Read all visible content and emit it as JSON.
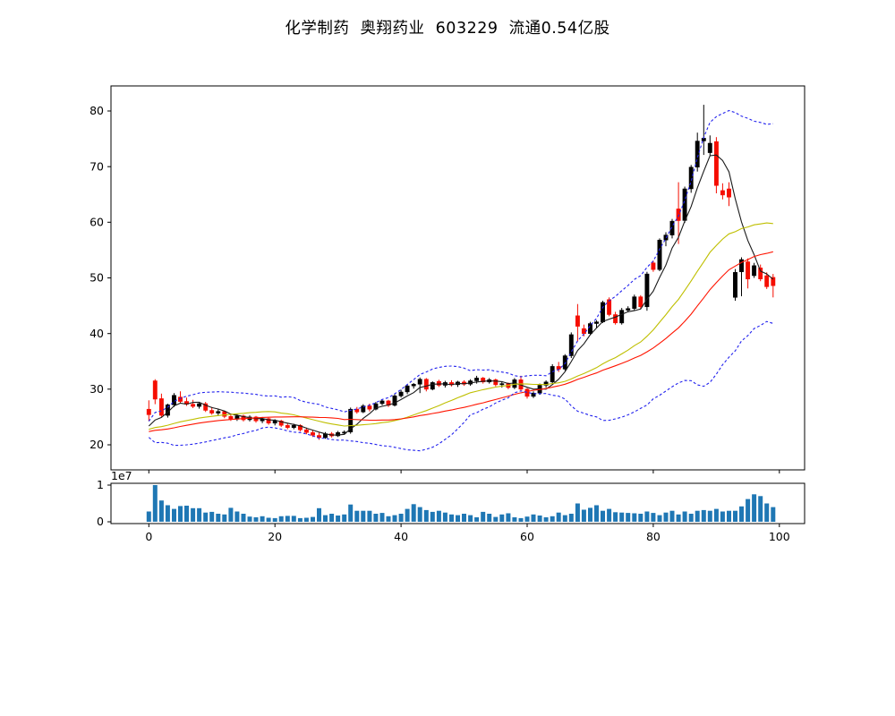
{
  "title": "化学制药  奥翔药业  603229  流通0.54亿股",
  "figure": {
    "background": "#ffffff",
    "axes_edge_color": "#000000",
    "tick_label_color": "#000000"
  },
  "chart_data": {
    "type": "candlestick",
    "title": "化学制药  奥翔药业  603229  流通0.54亿股",
    "x_start": 0,
    "x_step": 1,
    "n_points": 100,
    "xlim": [
      -6,
      104
    ],
    "ylim": [
      15.5,
      84.5
    ],
    "y_ticks": [
      20,
      30,
      40,
      50,
      60,
      70,
      80
    ],
    "x_ticks": [
      0,
      20,
      40,
      60,
      80,
      100
    ],
    "grid": false,
    "legend": "none",
    "up_color": "#000000",
    "down_color": "#f50d00",
    "overlays": [
      {
        "name": "ma5",
        "color": "#1a1a1a",
        "style": "solid",
        "window": 5
      },
      {
        "name": "ma20",
        "color": "#bfbf00",
        "style": "solid",
        "window": 20
      },
      {
        "name": "ma30",
        "color": "#ff1400",
        "style": "solid",
        "window": 30
      },
      {
        "name": "bollinger-upper",
        "color": "#2222ee",
        "style": "dashed",
        "window": 20,
        "k": 2
      },
      {
        "name": "bollinger-lower",
        "color": "#2222ee",
        "style": "dashed",
        "window": 20,
        "k": -2
      }
    ],
    "pre_window_closes": [
      20.6,
      21.0,
      20.7,
      21.3,
      21.6,
      21.2,
      21.8,
      22.1,
      21.9,
      22.4,
      22.2,
      22.6,
      22.9,
      22.5,
      23.0,
      22.7,
      23.2,
      22.8,
      23.1,
      22.6,
      23.0,
      22.8,
      23.0,
      22.5,
      23.2
    ],
    "open": [
      26.4,
      31.5,
      28.3,
      25.3,
      27.2,
      28.6,
      27.8,
      27.3,
      26.9,
      27.4,
      26.2,
      25.7,
      26.0,
      25.1,
      24.6,
      25.2,
      24.5,
      25.0,
      24.3,
      24.7,
      23.9,
      24.3,
      23.5,
      23.1,
      23.5,
      22.7,
      22.2,
      21.7,
      21.3,
      22.0,
      21.6,
      22.2,
      22.3,
      26.4,
      25.9,
      27.0,
      26.4,
      27.4,
      27.9,
      27.1,
      28.8,
      29.5,
      30.6,
      30.9,
      31.8,
      30.0,
      31.4,
      30.7,
      31.2,
      30.8,
      31.3,
      30.9,
      31.5,
      32.0,
      31.3,
      31.7,
      30.8,
      31.0,
      30.3,
      31.7,
      30.0,
      28.7,
      29.3,
      30.7,
      31.3,
      34.1,
      33.6,
      36.0,
      43.2,
      40.9,
      40.0,
      41.8,
      42.1,
      46.1,
      43.4,
      41.9,
      44.2,
      44.5,
      46.6,
      44.8,
      52.7,
      51.5,
      56.8,
      57.7,
      62.4,
      60.3,
      66.0,
      69.9,
      74.6,
      72.5,
      74.5,
      65.7,
      66.0,
      46.5,
      51.1,
      52.9,
      50.4,
      51.8,
      50.4,
      50.1
    ],
    "high": [
      28.0,
      31.8,
      29.2,
      27.4,
      29.3,
      29.6,
      28.5,
      28.1,
      27.7,
      27.7,
      26.8,
      26.4,
      26.2,
      25.6,
      25.5,
      25.4,
      25.3,
      25.2,
      25.0,
      24.9,
      24.6,
      24.5,
      23.9,
      23.8,
      23.7,
      23.1,
      22.6,
      22.2,
      22.3,
      22.3,
      22.5,
      22.6,
      26.7,
      26.8,
      27.3,
      27.4,
      27.7,
      28.2,
      28.1,
      29.1,
      29.9,
      30.9,
      31.1,
      32.1,
      32.0,
      31.4,
      31.7,
      31.5,
      31.6,
      31.5,
      31.6,
      31.8,
      32.4,
      32.2,
      32.0,
      31.9,
      31.3,
      31.2,
      32.0,
      32.4,
      30.2,
      29.6,
      31.0,
      31.6,
      34.5,
      34.9,
      36.3,
      40.2,
      45.3,
      41.6,
      42.1,
      42.4,
      45.9,
      46.5,
      43.9,
      44.6,
      44.9,
      47.0,
      46.9,
      51.1,
      53.1,
      57.1,
      58.2,
      60.6,
      67.2,
      66.4,
      70.3,
      76.1,
      81.1,
      75.6,
      75.3,
      67.0,
      67.2,
      51.6,
      53.7,
      53.5,
      52.7,
      52.4,
      51.0,
      50.7
    ],
    "low": [
      24.3,
      27.3,
      24.9,
      24.9,
      26.8,
      27.4,
      27.0,
      26.6,
      26.5,
      25.9,
      25.4,
      25.2,
      24.8,
      24.3,
      24.3,
      24.2,
      24.2,
      24.0,
      23.9,
      23.6,
      23.5,
      23.2,
      22.8,
      22.8,
      22.4,
      21.9,
      21.4,
      20.9,
      21.1,
      21.3,
      21.4,
      21.8,
      22.0,
      25.6,
      25.7,
      26.0,
      26.2,
      27.1,
      26.8,
      26.9,
      28.5,
      29.1,
      30.1,
      29.3,
      29.6,
      29.8,
      30.4,
      30.3,
      30.5,
      30.4,
      30.6,
      30.6,
      31.0,
      31.0,
      31.0,
      30.5,
      30.3,
      30.0,
      30.0,
      29.7,
      28.3,
      28.4,
      29.0,
      30.3,
      31.0,
      33.1,
      33.3,
      35.6,
      38.6,
      39.5,
      39.7,
      41.0,
      41.9,
      43.1,
      41.6,
      41.6,
      43.8,
      44.2,
      44.4,
      44.1,
      51.1,
      51.2,
      55.7,
      57.1,
      56.1,
      59.9,
      65.3,
      69.1,
      72.1,
      72.0,
      65.2,
      64.1,
      62.9,
      45.9,
      46.7,
      48.1,
      50.0,
      49.4,
      48.0,
      46.5
    ],
    "close": [
      25.4,
      28.2,
      25.3,
      27.2,
      28.9,
      27.8,
      27.3,
      26.9,
      27.4,
      26.2,
      25.7,
      26.0,
      25.1,
      24.6,
      25.2,
      24.5,
      25.0,
      24.3,
      24.7,
      23.9,
      24.3,
      23.5,
      23.1,
      23.5,
      22.7,
      22.2,
      21.7,
      21.3,
      22.0,
      21.6,
      22.2,
      22.3,
      26.4,
      25.9,
      27.0,
      26.4,
      27.4,
      27.9,
      27.1,
      28.8,
      29.5,
      30.6,
      30.9,
      31.8,
      30.0,
      31.2,
      30.7,
      31.2,
      30.8,
      31.3,
      30.9,
      31.5,
      32.0,
      31.3,
      31.7,
      30.8,
      31.0,
      30.3,
      31.7,
      30.0,
      28.7,
      29.3,
      30.7,
      31.3,
      34.1,
      33.6,
      36.0,
      39.8,
      41.3,
      40.0,
      41.8,
      42.1,
      45.6,
      43.4,
      41.9,
      44.2,
      44.5,
      46.6,
      44.8,
      50.7,
      51.5,
      56.8,
      57.7,
      60.2,
      60.3,
      66.0,
      69.9,
      74.6,
      75.1,
      74.2,
      66.6,
      64.9,
      64.5,
      51.0,
      53.3,
      49.8,
      52.2,
      49.8,
      48.4,
      48.6
    ],
    "volume_pane": {
      "type": "bar",
      "bar_color": "#1f77b4",
      "unit_scale_label": "1e7",
      "y_ticks": [
        0,
        1
      ],
      "ylim": [
        -0.05,
        1.05
      ],
      "x_ticks": [
        0,
        20,
        40,
        60,
        80,
        100
      ],
      "values_1e7": [
        0.28,
        1.0,
        0.58,
        0.45,
        0.35,
        0.43,
        0.44,
        0.37,
        0.37,
        0.25,
        0.27,
        0.22,
        0.2,
        0.38,
        0.28,
        0.22,
        0.14,
        0.12,
        0.15,
        0.11,
        0.1,
        0.15,
        0.16,
        0.16,
        0.1,
        0.11,
        0.13,
        0.37,
        0.18,
        0.22,
        0.17,
        0.2,
        0.47,
        0.3,
        0.3,
        0.3,
        0.22,
        0.24,
        0.15,
        0.18,
        0.22,
        0.35,
        0.48,
        0.4,
        0.32,
        0.27,
        0.3,
        0.25,
        0.2,
        0.18,
        0.22,
        0.18,
        0.12,
        0.27,
        0.22,
        0.13,
        0.2,
        0.23,
        0.12,
        0.1,
        0.14,
        0.2,
        0.17,
        0.12,
        0.15,
        0.25,
        0.18,
        0.22,
        0.5,
        0.33,
        0.38,
        0.45,
        0.3,
        0.35,
        0.26,
        0.25,
        0.24,
        0.23,
        0.22,
        0.28,
        0.24,
        0.18,
        0.25,
        0.3,
        0.2,
        0.28,
        0.22,
        0.3,
        0.32,
        0.3,
        0.35,
        0.28,
        0.3,
        0.3,
        0.42,
        0.62,
        0.75,
        0.7,
        0.5,
        0.4
      ]
    }
  }
}
